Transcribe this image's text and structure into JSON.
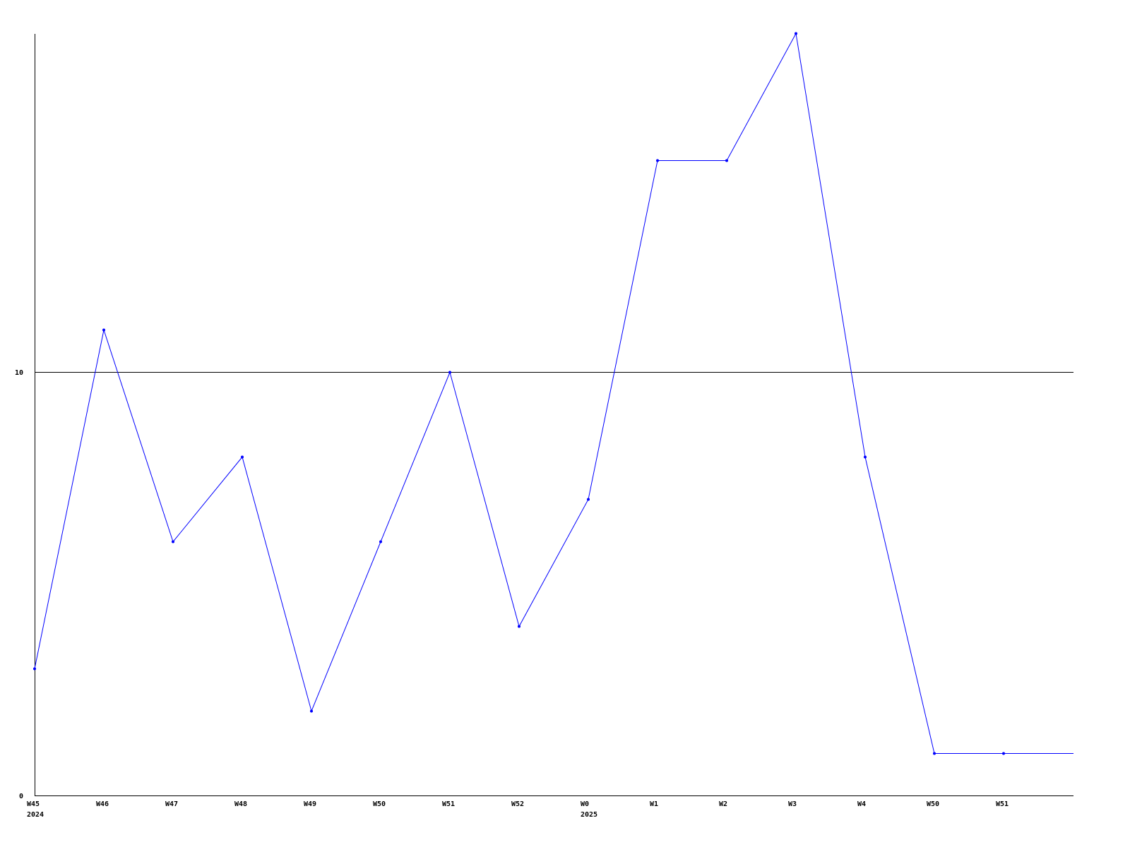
{
  "chart_data": {
    "type": "line",
    "title": "",
    "xlabel": "",
    "ylabel": "",
    "categories": [
      "W45",
      "W46",
      "W47",
      "W48",
      "W49",
      "W50",
      "W51",
      "W52",
      "W0",
      "W1",
      "W2",
      "W3",
      "W4",
      "W50",
      "W51"
    ],
    "year_labels": [
      {
        "index": 0,
        "label": "2024"
      },
      {
        "index": 8,
        "label": "2025"
      }
    ],
    "series": [
      {
        "values": [
          3,
          11,
          6,
          8,
          2,
          6,
          10,
          4,
          7,
          15,
          15,
          18,
          8,
          1,
          1
        ]
      }
    ],
    "ylim": [
      0,
      18
    ],
    "y_ticks": [
      0,
      10
    ],
    "y_tick_labels": [
      "0",
      "10"
    ],
    "grid": "horizontal line at 10",
    "line_color": "#0000ff",
    "axis_color": "#000000"
  }
}
